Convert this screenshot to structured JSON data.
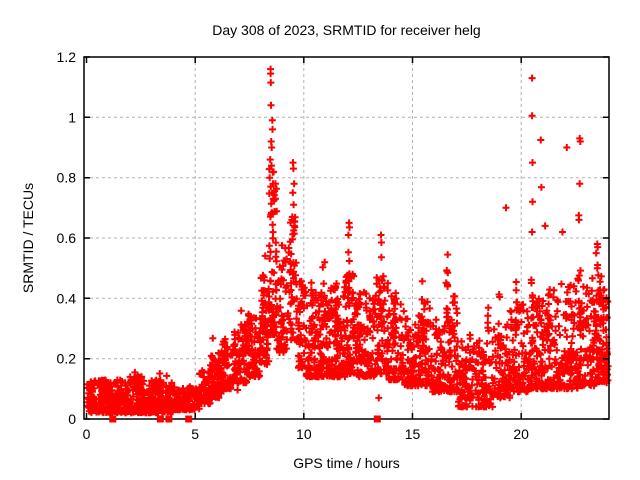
{
  "chart_data": {
    "type": "scatter",
    "title": "Day 308 of 2023, SRMTID for receiver helg",
    "xlabel": "GPS time / hours",
    "ylabel": "SRMTID / TECUs",
    "xlim": [
      -0.115,
      24.04
    ],
    "ylim": [
      0,
      1.2
    ],
    "xticks": [
      0,
      5,
      10,
      15,
      20
    ],
    "xtick_labels": [
      "0",
      "5",
      "10",
      "15",
      "20"
    ],
    "yticks": [
      0,
      0.2,
      0.4,
      0.6,
      0.8,
      1,
      1.2
    ],
    "ytick_labels": [
      "0",
      "0.2",
      "0.4",
      "0.6",
      "0.8",
      "1",
      "1.2"
    ],
    "grid": true,
    "grid_color": "#b0b0b0",
    "axis_color": "#000000",
    "marker": "plus",
    "marker_color": "#ff0000",
    "zero_marker": "filled-square",
    "series_name": "SRMTID",
    "point_cloud": {
      "comment_bands": "dense scatter regions: [x_start,x_end,count,y_min,y_max,low_bias_exponent]",
      "bands": [
        [
          0.03,
          1.0,
          120,
          0.02,
          0.13,
          1.4
        ],
        [
          1.0,
          2.0,
          130,
          0.02,
          0.13,
          1.4
        ],
        [
          2.0,
          3.0,
          130,
          0.02,
          0.14,
          1.4
        ],
        [
          3.0,
          4.0,
          120,
          0.02,
          0.13,
          1.4
        ],
        [
          4.0,
          4.85,
          90,
          0.03,
          0.11,
          1.4
        ],
        [
          4.85,
          5.2,
          40,
          0.03,
          0.1,
          1.4
        ],
        [
          5.2,
          5.7,
          55,
          0.05,
          0.16,
          1.5
        ],
        [
          5.7,
          6.2,
          60,
          0.07,
          0.22,
          1.6
        ],
        [
          6.2,
          6.8,
          65,
          0.1,
          0.26,
          1.6
        ],
        [
          6.8,
          7.4,
          65,
          0.12,
          0.3,
          1.7
        ],
        [
          7.4,
          8.0,
          70,
          0.14,
          0.35,
          1.7
        ],
        [
          8.0,
          8.4,
          55,
          0.18,
          0.5,
          1.7
        ],
        [
          8.4,
          8.75,
          65,
          0.28,
          0.85,
          1.4
        ],
        [
          8.75,
          9.35,
          55,
          0.22,
          0.58,
          1.6
        ],
        [
          9.35,
          9.7,
          45,
          0.26,
          0.7,
          1.5
        ],
        [
          9.7,
          10.1,
          50,
          0.17,
          0.48,
          1.8
        ],
        [
          10.1,
          10.7,
          70,
          0.14,
          0.42,
          1.9
        ],
        [
          10.7,
          11.3,
          80,
          0.14,
          0.44,
          1.9
        ],
        [
          11.3,
          11.9,
          80,
          0.14,
          0.45,
          1.9
        ],
        [
          11.9,
          12.4,
          75,
          0.15,
          0.48,
          1.9
        ],
        [
          12.4,
          13.3,
          110,
          0.14,
          0.42,
          1.9
        ],
        [
          13.3,
          13.9,
          70,
          0.15,
          0.48,
          1.9
        ],
        [
          13.9,
          14.6,
          80,
          0.13,
          0.42,
          1.9
        ],
        [
          14.6,
          15.3,
          80,
          0.11,
          0.36,
          1.8
        ],
        [
          15.3,
          15.9,
          70,
          0.11,
          0.4,
          1.9
        ],
        [
          15.9,
          16.5,
          70,
          0.09,
          0.34,
          1.8
        ],
        [
          16.5,
          17.1,
          70,
          0.09,
          0.37,
          1.9
        ],
        [
          17.1,
          17.9,
          85,
          0.04,
          0.28,
          1.8
        ],
        [
          17.9,
          18.7,
          85,
          0.04,
          0.26,
          1.7
        ],
        [
          18.7,
          19.5,
          85,
          0.07,
          0.32,
          1.8
        ],
        [
          19.5,
          20.3,
          90,
          0.09,
          0.38,
          1.8
        ],
        [
          20.3,
          21.0,
          85,
          0.1,
          0.4,
          1.9
        ],
        [
          21.0,
          21.8,
          90,
          0.1,
          0.43,
          1.9
        ],
        [
          21.8,
          22.6,
          95,
          0.1,
          0.46,
          1.9
        ],
        [
          22.6,
          23.4,
          100,
          0.11,
          0.48,
          1.9
        ],
        [
          23.4,
          24.0,
          90,
          0.12,
          0.48,
          1.8
        ]
      ],
      "comment_spikes": "vertical streaks: [x_center,width,count,y_min,y_max]",
      "spikes": [
        [
          2.25,
          0.12,
          6,
          0.08,
          0.16
        ],
        [
          3.35,
          0.12,
          6,
          0.08,
          0.16
        ],
        [
          5.8,
          0.12,
          8,
          0.14,
          0.3
        ],
        [
          6.35,
          0.1,
          6,
          0.16,
          0.29
        ],
        [
          6.8,
          0.1,
          7,
          0.16,
          0.3
        ],
        [
          7.15,
          0.12,
          8,
          0.2,
          0.37
        ],
        [
          7.45,
          0.1,
          7,
          0.2,
          0.38
        ],
        [
          8.2,
          0.1,
          8,
          0.28,
          0.56
        ],
        [
          9.0,
          0.1,
          6,
          0.28,
          0.52
        ],
        [
          10.35,
          0.1,
          8,
          0.28,
          0.47
        ],
        [
          10.9,
          0.12,
          9,
          0.28,
          0.52
        ],
        [
          11.5,
          0.12,
          9,
          0.3,
          0.53
        ],
        [
          12.08,
          0.1,
          8,
          0.38,
          0.6
        ],
        [
          13.55,
          0.12,
          9,
          0.33,
          0.57
        ],
        [
          14.2,
          0.1,
          8,
          0.28,
          0.49
        ],
        [
          15.5,
          0.12,
          8,
          0.26,
          0.46
        ],
        [
          16.6,
          0.1,
          8,
          0.31,
          0.54
        ],
        [
          16.9,
          0.1,
          6,
          0.26,
          0.45
        ],
        [
          18.5,
          0.1,
          5,
          0.28,
          0.44
        ],
        [
          19.0,
          0.1,
          6,
          0.26,
          0.43
        ],
        [
          19.8,
          0.1,
          7,
          0.28,
          0.47
        ],
        [
          20.5,
          0.08,
          6,
          0.28,
          0.55
        ],
        [
          21.3,
          0.1,
          6,
          0.3,
          0.5
        ],
        [
          22.7,
          0.1,
          7,
          0.3,
          0.55
        ],
        [
          23.5,
          0.12,
          8,
          0.28,
          0.52
        ],
        [
          23.75,
          0.1,
          8,
          0.24,
          0.47
        ]
      ],
      "comment_outliers": "individually visible points [x,y]",
      "outliers": [
        [
          8.47,
          1.16
        ],
        [
          8.47,
          1.145
        ],
        [
          8.48,
          1.115
        ],
        [
          8.49,
          1.04
        ],
        [
          8.55,
          0.99
        ],
        [
          8.56,
          0.96
        ],
        [
          8.5,
          0.92
        ],
        [
          8.52,
          0.9
        ],
        [
          8.45,
          0.86
        ],
        [
          8.51,
          0.84
        ],
        [
          8.43,
          0.8
        ],
        [
          8.58,
          0.78
        ],
        [
          8.6,
          0.75
        ],
        [
          9.5,
          0.85
        ],
        [
          9.52,
          0.83
        ],
        [
          9.55,
          0.78
        ],
        [
          9.49,
          0.75
        ],
        [
          9.53,
          0.71
        ],
        [
          9.47,
          0.67
        ],
        [
          9.58,
          0.655
        ],
        [
          9.56,
          0.64
        ],
        [
          12.08,
          0.65
        ],
        [
          12.1,
          0.635
        ],
        [
          12.05,
          0.61
        ],
        [
          13.55,
          0.61
        ],
        [
          13.57,
          0.585
        ],
        [
          16.62,
          0.545
        ],
        [
          19.3,
          0.7
        ],
        [
          20.5,
          1.13
        ],
        [
          20.5,
          1.005
        ],
        [
          20.52,
          0.85
        ],
        [
          20.52,
          0.72
        ],
        [
          20.5,
          0.62
        ],
        [
          20.9,
          0.925
        ],
        [
          20.93,
          0.768
        ],
        [
          21.1,
          0.64
        ],
        [
          21.9,
          0.62
        ],
        [
          22.1,
          0.9
        ],
        [
          22.69,
          0.93
        ],
        [
          22.72,
          0.92
        ],
        [
          22.69,
          0.78
        ],
        [
          22.65,
          0.675
        ],
        [
          22.66,
          0.66
        ],
        [
          23.5,
          0.58
        ],
        [
          23.52,
          0.57
        ],
        [
          23.45,
          0.55
        ],
        [
          6.95,
          0.096
        ],
        [
          7.3,
          0.12
        ],
        [
          3.69,
          0.143
        ],
        [
          7.62,
          0.3
        ],
        [
          17.5,
          0.04
        ],
        [
          13.45,
          0.07
        ]
      ],
      "comment_zero_markers": "red filled squares drawn at y=0 (hours)",
      "zero_markers": [
        1.21,
        3.4,
        3.79,
        4.7,
        13.38
      ]
    }
  }
}
